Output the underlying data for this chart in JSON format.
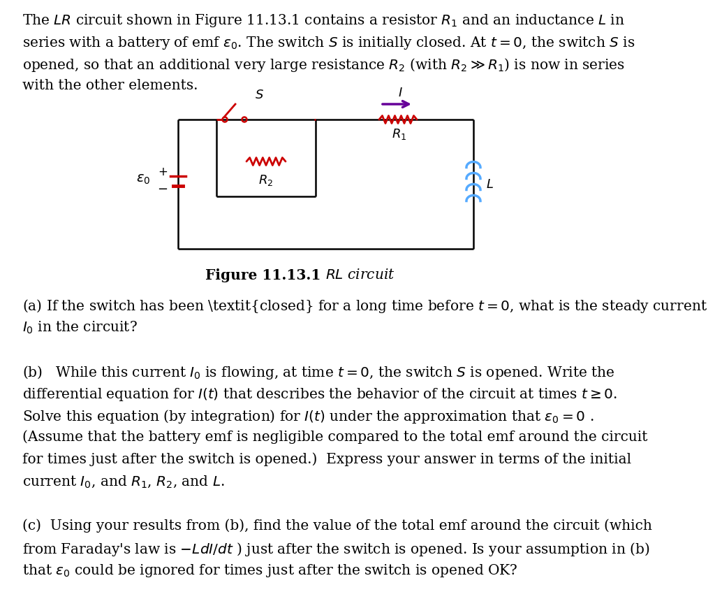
{
  "background_color": "#ffffff",
  "text_color": "#000000",
  "circuit_line_color": "#000000",
  "resistor_color": "#cc0000",
  "switch_color": "#cc0000",
  "inductor_color": "#55aaff",
  "arrow_color": "#660099",
  "battery_pos_color": "#cc0000",
  "battery_neg_color": "#cc0000",
  "circuit_lw": 1.8,
  "fig_width": 10.24,
  "fig_height": 8.47,
  "dpi": 100,
  "text_fontsize": 14.5,
  "caption_fontsize": 14.5,
  "para1": [
    "The $LR$ circuit shown in Figure 11.13.1 contains a resistor $R_1$ and an inductance $L$ in",
    "series with a battery of emf $\\varepsilon_0$. The switch $S$ is initially closed. At $t = 0$, the switch $S$ is",
    "opened, so that an additional very large resistance $R_2$ (with $R_2 \\gg R_1$) is now in series",
    "with the other elements."
  ],
  "para_a": [
    "(a) If the switch has been \\textit{closed} for a long time before $t = 0$, what is the steady current",
    "$I_0$ in the circuit?"
  ],
  "para_b": [
    "(b)   While this current $I_0$ is flowing, at time $t = 0$, the switch $S$ is opened. Write the",
    "differential equation for $I(t)$ that describes the behavior of the circuit at times $t \\geq 0$.",
    "Solve this equation (by integration) for $I(t)$ under the approximation that $\\varepsilon_0 = 0$ .",
    "(Assume that the battery emf is negligible compared to the total emf around the circuit",
    "for times just after the switch is opened.)  Express your answer in terms of the initial",
    "current $I_0$, and $R_1$, $R_2$, and $L$."
  ],
  "para_c": [
    "(c)  Using your results from (b), find the value of the total emf around the circuit (which",
    "from Faraday's law is $-LdI/dt$ ) just after the switch is opened. Is your assumption in (b)",
    "that $\\varepsilon_0$ could be ignored for times just after the switch is opened OK?"
  ]
}
